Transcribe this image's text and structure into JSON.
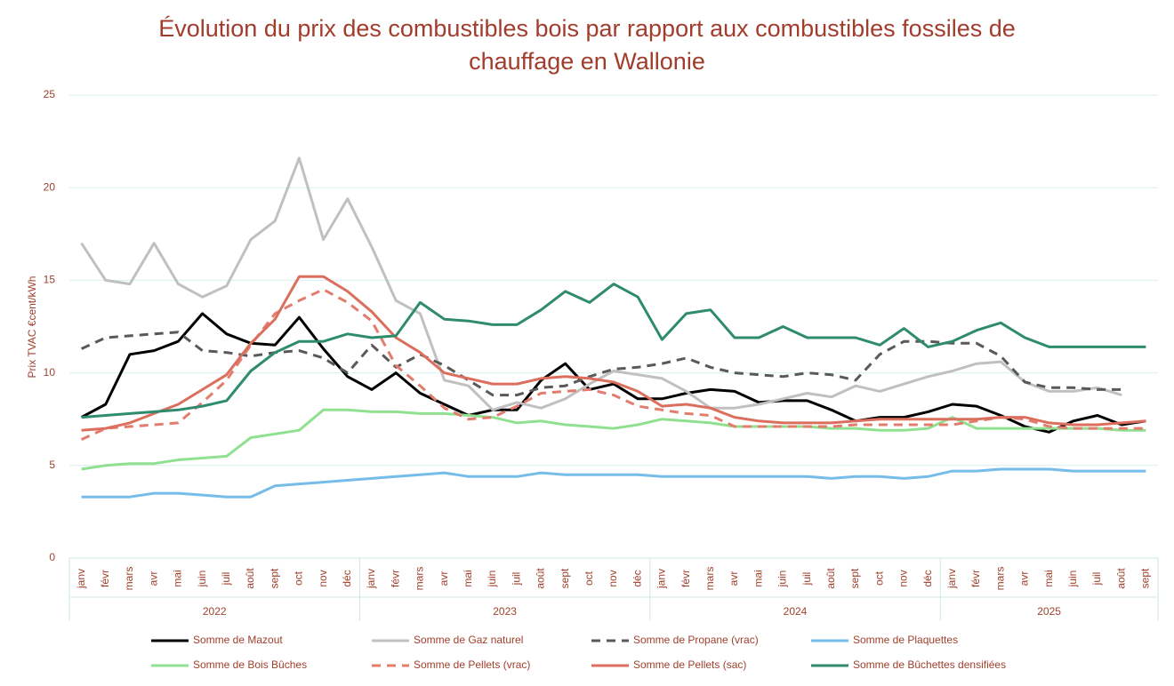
{
  "chart_data": {
    "type": "line",
    "title": "Évolution du prix des combustibles bois par rapport aux combustibles fossiles de chauffage en Wallonie",
    "y_label": "Prix  TVAC €cent/kWh",
    "groups": [
      {
        "name": "2022",
        "categories": [
          "janv",
          "févr",
          "mars",
          "avr",
          "mai",
          "juin",
          "juil",
          "août",
          "sept",
          "oct",
          "nov",
          "déc"
        ]
      },
      {
        "name": "2023",
        "categories": [
          "janv",
          "févr",
          "mars",
          "avr",
          "mai",
          "juin",
          "juil",
          "août",
          "sept",
          "oct",
          "nov",
          "déc"
        ]
      },
      {
        "name": "2024",
        "categories": [
          "janv",
          "févr",
          "mars",
          "avr",
          "mai",
          "juin",
          "juil",
          "août",
          "sept",
          "oct",
          "nov",
          "déc"
        ]
      },
      {
        "name": "2025",
        "categories": [
          "janv",
          "févr",
          "mars",
          "avr",
          "mai",
          "juin",
          "juil",
          "août",
          "sept"
        ]
      }
    ],
    "ylim": [
      0,
      25
    ],
    "yticks": [
      0,
      5,
      10,
      15,
      20,
      25
    ],
    "grid": true,
    "series": [
      {
        "name": "Somme de Mazout",
        "color": "#000000",
        "dashed": false,
        "values": [
          7.6,
          8.3,
          11.0,
          11.2,
          11.7,
          13.2,
          12.1,
          11.6,
          11.5,
          13.0,
          11.3,
          9.8,
          9.1,
          10.0,
          8.9,
          8.3,
          7.7,
          8.0,
          8.0,
          9.6,
          10.5,
          9.1,
          9.4,
          8.6,
          8.6,
          8.9,
          9.1,
          9.0,
          8.4,
          8.5,
          8.5,
          8.0,
          7.4,
          7.6,
          7.6,
          7.9,
          8.3,
          8.2,
          7.7,
          7.1,
          6.8,
          7.4,
          7.7,
          7.2,
          7.4
        ]
      },
      {
        "name": "Somme de Gaz naturel",
        "color": "#c0c0c0",
        "dashed": false,
        "values": [
          17.0,
          15.0,
          14.8,
          17.0,
          14.8,
          14.1,
          14.7,
          17.2,
          18.2,
          21.6,
          17.2,
          19.4,
          16.8,
          13.9,
          13.2,
          9.6,
          9.3,
          8.0,
          8.4,
          8.1,
          8.6,
          9.4,
          10.1,
          9.9,
          9.7,
          9.0,
          8.1,
          8.1,
          8.3,
          8.6,
          8.9,
          8.7,
          9.3,
          9.0,
          9.4,
          9.8,
          10.1,
          10.5,
          10.6,
          9.5,
          9.0,
          9.0,
          9.2,
          8.8,
          null
        ]
      },
      {
        "name": "Somme de Propane (vrac)",
        "color": "#595959",
        "dashed": true,
        "values": [
          11.3,
          11.9,
          12.0,
          12.1,
          12.2,
          11.2,
          11.1,
          10.9,
          11.1,
          11.2,
          10.8,
          10.0,
          11.5,
          10.3,
          11.0,
          10.4,
          9.6,
          8.8,
          8.8,
          9.2,
          9.3,
          9.8,
          10.2,
          10.3,
          10.5,
          10.8,
          10.3,
          10.0,
          9.9,
          9.8,
          10.0,
          9.9,
          9.6,
          11.0,
          11.7,
          11.7,
          11.6,
          11.6,
          10.9,
          9.5,
          9.2,
          9.2,
          9.1,
          9.1,
          null
        ]
      },
      {
        "name": "Somme de Plaquettes",
        "color": "#75bde8",
        "dashed": false,
        "values": [
          3.3,
          3.3,
          3.3,
          3.5,
          3.5,
          3.4,
          3.3,
          3.3,
          3.9,
          4.0,
          4.1,
          4.2,
          4.3,
          4.4,
          4.5,
          4.6,
          4.4,
          4.4,
          4.4,
          4.6,
          4.5,
          4.5,
          4.5,
          4.5,
          4.4,
          4.4,
          4.4,
          4.4,
          4.4,
          4.4,
          4.4,
          4.3,
          4.4,
          4.4,
          4.3,
          4.4,
          4.7,
          4.7,
          4.8,
          4.8,
          4.8,
          4.7,
          4.7,
          4.7,
          4.7
        ]
      },
      {
        "name": "Somme de Bois Bûches",
        "color": "#90e090",
        "dashed": false,
        "values": [
          4.8,
          5.0,
          5.1,
          5.1,
          5.3,
          5.4,
          5.5,
          6.5,
          6.7,
          6.9,
          8.0,
          8.0,
          7.9,
          7.9,
          7.8,
          7.8,
          7.7,
          7.6,
          7.3,
          7.4,
          7.2,
          7.1,
          7.0,
          7.2,
          7.5,
          7.4,
          7.3,
          7.1,
          7.1,
          7.1,
          7.1,
          7.0,
          7.0,
          6.9,
          6.9,
          7.0,
          7.6,
          7.0,
          7.0,
          7.0,
          7.0,
          7.0,
          7.0,
          6.9,
          6.9
        ]
      },
      {
        "name": "Somme de Pellets (vrac)",
        "color": "#e27c6c",
        "dashed": true,
        "values": [
          6.4,
          7.0,
          7.1,
          7.2,
          7.3,
          8.4,
          9.6,
          11.5,
          13.2,
          13.9,
          14.5,
          13.8,
          12.8,
          10.4,
          9.3,
          8.1,
          7.5,
          7.6,
          8.2,
          8.9,
          9.0,
          9.1,
          8.8,
          8.2,
          8.0,
          7.8,
          7.7,
          7.1,
          7.1,
          7.1,
          7.1,
          7.1,
          7.2,
          7.2,
          7.2,
          7.2,
          7.2,
          7.4,
          7.6,
          7.5,
          7.1,
          7.0,
          7.0,
          7.0,
          7.0
        ]
      },
      {
        "name": "Somme de Pellets (sac)",
        "color": "#dc6e5e",
        "dashed": false,
        "values": [
          6.9,
          7.0,
          7.3,
          7.8,
          8.3,
          9.1,
          9.9,
          11.6,
          12.9,
          15.2,
          15.2,
          14.4,
          13.3,
          11.9,
          11.1,
          10.0,
          9.7,
          9.4,
          9.4,
          9.7,
          9.8,
          9.7,
          9.5,
          9.0,
          8.2,
          8.3,
          8.1,
          7.6,
          7.4,
          7.3,
          7.3,
          7.3,
          7.4,
          7.5,
          7.5,
          7.5,
          7.5,
          7.5,
          7.6,
          7.6,
          7.3,
          7.2,
          7.2,
          7.3,
          7.4
        ]
      },
      {
        "name": "Somme de Bûchettes densifiées",
        "color": "#2e8b6e",
        "dashed": false,
        "values": [
          7.6,
          7.7,
          7.8,
          7.9,
          8.0,
          8.2,
          8.5,
          10.1,
          11.1,
          11.7,
          11.7,
          12.1,
          11.9,
          12.0,
          13.8,
          12.9,
          12.8,
          12.6,
          12.6,
          13.4,
          14.4,
          13.8,
          14.8,
          14.1,
          11.8,
          13.2,
          13.4,
          11.9,
          11.9,
          12.5,
          11.9,
          11.9,
          11.9,
          11.5,
          12.4,
          11.4,
          11.7,
          12.3,
          12.7,
          11.9,
          11.4,
          11.4,
          11.4,
          11.4,
          11.4
        ]
      }
    ]
  }
}
